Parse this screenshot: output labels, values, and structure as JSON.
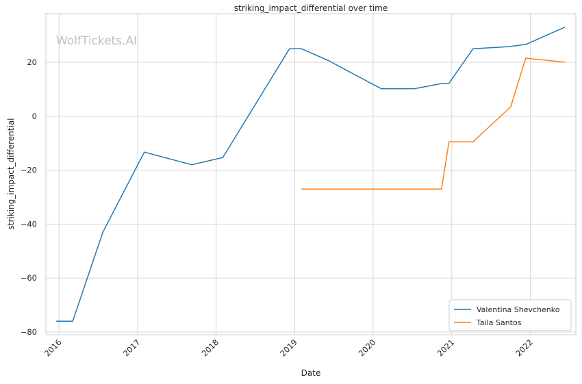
{
  "chart_data": {
    "type": "line",
    "title": "striking_impact_differential over time",
    "xlabel": "Date",
    "ylabel": "striking_impact_differential",
    "watermark": "WolfTickets.AI",
    "xlim": [
      "2015-11-01",
      "2022-08-01"
    ],
    "ylim": [
      -81,
      38
    ],
    "x_ticks": [
      "2016",
      "2017",
      "2018",
      "2019",
      "2020",
      "2021",
      "2022"
    ],
    "y_ticks": [
      -80,
      -60,
      -40,
      -20,
      0,
      20
    ],
    "grid": true,
    "legend_position": "lower-right",
    "series": [
      {
        "name": "Valentina Shevchenko",
        "color": "#1f77b4",
        "points": [
          [
            "2015-12-19",
            -76
          ],
          [
            "2016-03-05",
            -76
          ],
          [
            "2016-07-23",
            -43
          ],
          [
            "2017-02-01",
            -13.3
          ],
          [
            "2017-09-09",
            -18
          ],
          [
            "2018-02-01",
            -15.3
          ],
          [
            "2018-12-08",
            25
          ],
          [
            "2019-02-02",
            25
          ],
          [
            "2019-06-08",
            20.6
          ],
          [
            "2019-08-31",
            17
          ],
          [
            "2020-02-08",
            10.2
          ],
          [
            "2020-07-11",
            10.2
          ],
          [
            "2020-11-21",
            12.2
          ],
          [
            "2020-12-19",
            12.2
          ],
          [
            "2021-04-10",
            25
          ],
          [
            "2021-09-25",
            25.8
          ],
          [
            "2021-12-11",
            26.6
          ],
          [
            "2022-06-11",
            33
          ]
        ]
      },
      {
        "name": "Taila Santos",
        "color": "#ff7f0e",
        "points": [
          [
            "2019-02-02",
            -27
          ],
          [
            "2020-11-14",
            -27
          ],
          [
            "2020-12-19",
            -9.5
          ],
          [
            "2021-04-10",
            -9.5
          ],
          [
            "2021-10-02",
            3.5
          ],
          [
            "2021-12-11",
            21.5
          ],
          [
            "2022-06-11",
            20
          ]
        ]
      }
    ]
  }
}
